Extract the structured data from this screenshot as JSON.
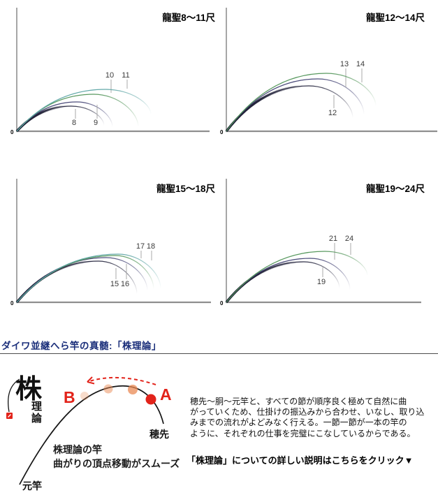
{
  "page": {
    "background": "#ffffff"
  },
  "chart_data": [
    {
      "type": "line",
      "title": "龍聖8〜11尺",
      "origin_label": "0",
      "xlabel": "",
      "ylabel": "",
      "grid": false,
      "axis_color": "#8f8f8f",
      "x_axis_len": 276,
      "series": [
        {
          "name": "8",
          "color": "#23233c",
          "apex": [
            78,
            36
          ],
          "end": [
            125,
            8
          ],
          "label_pos": [
            82,
            13
          ],
          "leader": [
            84,
            18,
            32
          ]
        },
        {
          "name": "9",
          "color": "#414173",
          "apex": [
            86,
            42
          ],
          "end": [
            137,
            6
          ],
          "label_pos": [
            113,
            13
          ],
          "leader": [
            115,
            18,
            38
          ]
        },
        {
          "name": "10",
          "color": "#4f9356",
          "apex": [
            110,
            53
          ],
          "end": [
            174,
            6
          ],
          "label_pos": [
            133,
            81
          ],
          "leader": [
            135,
            74,
            55
          ]
        },
        {
          "name": "11",
          "color": "#5ba4a4",
          "apex": [
            127,
            60
          ],
          "end": [
            192,
            24
          ],
          "label_pos": [
            156,
            81
          ],
          "leader": [
            158,
            74,
            61
          ]
        }
      ]
    },
    {
      "type": "line",
      "title": "龍聖12〜14尺",
      "origin_label": "0",
      "xlabel": "",
      "ylabel": "",
      "grid": false,
      "axis_color": "#8f8f8f",
      "x_axis_len": 305,
      "series": [
        {
          "name": "12",
          "color": "#23233c",
          "apex": [
            118,
            65
          ],
          "end": [
            181,
            19
          ],
          "label_pos": [
            152,
            27
          ],
          "leader": [
            154,
            33,
            52
          ]
        },
        {
          "name": "13",
          "color": "#414173",
          "apex": [
            131,
            75
          ],
          "end": [
            197,
            24
          ],
          "label_pos": [
            169,
            97
          ],
          "leader": [
            171,
            90,
            63
          ]
        },
        {
          "name": "14",
          "color": "#4f9356",
          "apex": [
            143,
            83
          ],
          "end": [
            214,
            36
          ],
          "label_pos": [
            192,
            97
          ],
          "leader": [
            194,
            90,
            70
          ]
        }
      ]
    },
    {
      "type": "line",
      "title": "龍聖15〜18尺",
      "origin_label": "0",
      "xlabel": "",
      "ylabel": "",
      "grid": false,
      "axis_color": "#8f8f8f",
      "x_axis_len": 278,
      "series": [
        {
          "name": "15",
          "color": "#23233c",
          "apex": [
            117,
            59
          ],
          "end": [
            172,
            12
          ],
          "label_pos": [
            140,
            27
          ],
          "leader": [
            142,
            33,
            49
          ]
        },
        {
          "name": "16",
          "color": "#414173",
          "apex": [
            128,
            64
          ],
          "end": [
            187,
            17
          ],
          "label_pos": [
            155,
            27
          ],
          "leader": [
            157,
            33,
            55
          ]
        },
        {
          "name": "17",
          "color": "#4f9356",
          "apex": [
            141,
            67
          ],
          "end": [
            196,
            19
          ],
          "label_pos": [
            177,
            81
          ],
          "leader": [
            178,
            74,
            63
          ]
        },
        {
          "name": "18",
          "color": "#5ba4a4",
          "apex": [
            145,
            69
          ],
          "end": [
            206,
            20
          ],
          "label_pos": [
            192,
            81
          ],
          "leader": [
            193,
            74,
            60
          ]
        }
      ]
    },
    {
      "type": "line",
      "title": "龍聖19〜24尺",
      "origin_label": "0",
      "xlabel": "",
      "ylabel": "",
      "grid": false,
      "axis_color": "#8f8f8f",
      "x_axis_len": 279,
      "series": [
        {
          "name": "19",
          "color": "#23233c",
          "apex": [
            111,
            58
          ],
          "end": [
            162,
            20
          ],
          "label_pos": [
            136,
            30
          ],
          "leader": [
            138,
            36,
            50
          ]
        },
        {
          "name": "21",
          "color": "#414173",
          "apex": [
            120,
            63
          ],
          "end": [
            177,
            18
          ],
          "label_pos": [
            153,
            92
          ],
          "leader": [
            155,
            85,
            61
          ]
        },
        {
          "name": "24",
          "color": "#4f9356",
          "apex": [
            141,
            73
          ],
          "end": [
            202,
            38
          ],
          "label_pos": [
            176,
            92
          ],
          "leader": [
            178,
            85,
            68
          ]
        }
      ]
    }
  ],
  "theory": {
    "heading": "ダイワ並継へら竿の真髄:「株理論」",
    "logo": {
      "main": "株",
      "sub1": "理",
      "sub2": "論"
    },
    "diagram": {
      "point_a": "A",
      "point_b": "B",
      "tip_label": "穂先",
      "butt_label": "元竿",
      "caption_line1": "株理論の竿",
      "caption_line2": "曲がりの頂点移動がスムーズ"
    },
    "paragraph": "穂先〜胴〜元竿と、すべての節が順序良く極めて自然に曲\nがっていくため、仕掛けの振込みから合わせ、いなし、取り込\nみまでの流れがよどみなく行える。一節一節が一本の竿の\nように、それぞれの仕事を完璧にこなしているからである。",
    "link_text": "「株理論」についての詳しい説明はこちらをクリック▼",
    "colors": {
      "heading_navy": "#1a2e7a",
      "accent_red": "#e2231a",
      "dot_orange": "#e98a54",
      "rod_black": "#151515"
    }
  }
}
